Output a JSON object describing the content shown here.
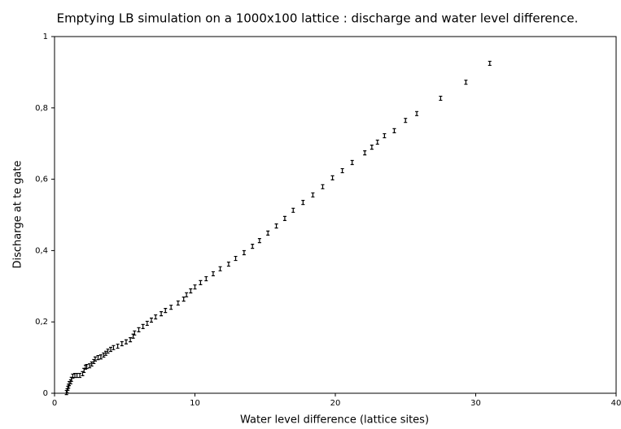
{
  "chart_data": {
    "type": "scatter",
    "title": "Emptying LB simulation on a 1000x100 lattice : discharge and water level difference.",
    "x_label": "Water level difference (lattice sites)",
    "y_label": "Discharge at te gate",
    "series": [
      {
        "color": "#000000",
        "x": [
          0.85,
          0.9,
          0.95,
          1.0,
          1.05,
          1.15,
          1.2,
          1.3,
          1.45,
          1.6,
          1.8,
          2.0,
          2.1,
          2.2,
          2.3,
          2.5,
          2.65,
          2.8,
          2.9,
          3.1,
          3.3,
          3.5,
          3.65,
          3.8,
          4.0,
          4.2,
          4.5,
          4.8,
          5.1,
          5.4,
          5.6,
          5.7,
          6.0,
          6.3,
          6.6,
          6.9,
          7.2,
          7.6,
          7.9,
          8.3,
          8.8,
          9.2,
          9.4,
          9.7,
          10.0,
          10.4,
          10.8,
          11.3,
          11.8,
          12.4,
          12.9,
          13.5,
          14.1,
          14.6,
          15.2,
          15.8,
          16.4,
          17.0,
          17.7,
          18.4,
          19.1,
          19.8,
          20.5,
          21.2,
          22.1,
          22.6,
          23.0,
          23.5,
          24.2,
          25.0,
          25.8,
          27.5,
          29.3,
          31.0
        ],
        "values": [
          0.002,
          0.007,
          0.014,
          0.02,
          0.027,
          0.032,
          0.039,
          0.048,
          0.05,
          0.05,
          0.05,
          0.055,
          0.064,
          0.073,
          0.075,
          0.077,
          0.082,
          0.089,
          0.096,
          0.1,
          0.102,
          0.107,
          0.112,
          0.118,
          0.123,
          0.128,
          0.132,
          0.139,
          0.144,
          0.15,
          0.16,
          0.169,
          0.178,
          0.187,
          0.196,
          0.205,
          0.214,
          0.223,
          0.232,
          0.241,
          0.253,
          0.264,
          0.276,
          0.287,
          0.298,
          0.31,
          0.321,
          0.335,
          0.349,
          0.362,
          0.378,
          0.394,
          0.412,
          0.428,
          0.449,
          0.469,
          0.49,
          0.513,
          0.535,
          0.556,
          0.579,
          0.604,
          0.624,
          0.647,
          0.674,
          0.69,
          0.704,
          0.722,
          0.736,
          0.765,
          0.784,
          0.827,
          0.872,
          0.925
        ]
      }
    ],
    "xlim": [
      0,
      40
    ],
    "xticks": [
      0,
      10,
      20,
      30,
      40
    ],
    "ylim": [
      0,
      1
    ],
    "yticks": [
      0,
      {
        "value": 0.2,
        "label": "0,2"
      },
      {
        "value": 0.4,
        "label": "0,4"
      },
      {
        "value": 0.6,
        "label": "0,6"
      },
      {
        "value": 0.8,
        "label": "0,8"
      },
      1
    ]
  }
}
